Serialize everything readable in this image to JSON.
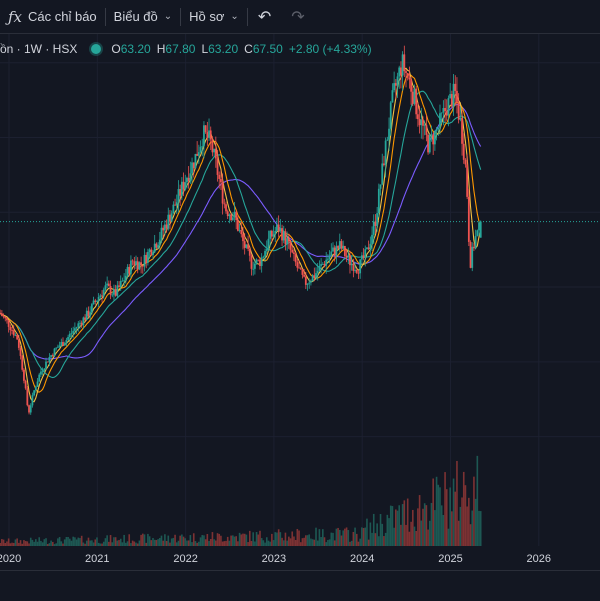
{
  "toolbar": {
    "indicators_label": "Các chỉ báo",
    "chart_label": "Biểu đồ",
    "profile_label": "Hồ sơ",
    "icons": [
      "fx-icon",
      "undo-icon",
      "redo-icon"
    ]
  },
  "legend": {
    "symbol": "ồn · 1W · HSX",
    "open_label": "O",
    "open": "63.20",
    "high_label": "H",
    "high": "67.80",
    "low_label": "L",
    "low": "63.20",
    "close_label": "C",
    "close": "67.50",
    "change": "+2.80 (+4.33%)"
  },
  "colors": {
    "up": "#26a69a",
    "down": "#ef5350",
    "background": "#131722",
    "ma_yellow": "#f5c042",
    "ma_orange": "#ff9800",
    "ma_teal": "#26a69a",
    "ma_purple": "#7b5cff"
  },
  "chart_data": {
    "type": "candlestick",
    "interval": "1W",
    "x_ticks": [
      "2020",
      "2021",
      "2022",
      "2023",
      "2024",
      "2025",
      "2026"
    ],
    "close_series": [
      [
        2019.9,
        43
      ],
      [
        2020.0,
        40
      ],
      [
        2020.1,
        36
      ],
      [
        2020.18,
        24
      ],
      [
        2020.22,
        16
      ],
      [
        2020.28,
        22
      ],
      [
        2020.35,
        27
      ],
      [
        2020.45,
        31
      ],
      [
        2020.55,
        34
      ],
      [
        2020.65,
        36
      ],
      [
        2020.75,
        39
      ],
      [
        2020.9,
        43
      ],
      [
        2021.0,
        47
      ],
      [
        2021.1,
        50
      ],
      [
        2021.2,
        48
      ],
      [
        2021.3,
        52
      ],
      [
        2021.4,
        57
      ],
      [
        2021.5,
        56
      ],
      [
        2021.6,
        60
      ],
      [
        2021.7,
        63
      ],
      [
        2021.8,
        68
      ],
      [
        2021.9,
        73
      ],
      [
        2022.0,
        79
      ],
      [
        2022.1,
        84
      ],
      [
        2022.2,
        91
      ],
      [
        2022.28,
        89
      ],
      [
        2022.35,
        82
      ],
      [
        2022.45,
        71
      ],
      [
        2022.55,
        69
      ],
      [
        2022.65,
        62
      ],
      [
        2022.75,
        56
      ],
      [
        2022.85,
        57
      ],
      [
        2022.95,
        63
      ],
      [
        2023.05,
        66
      ],
      [
        2023.15,
        62
      ],
      [
        2023.25,
        56
      ],
      [
        2023.35,
        51
      ],
      [
        2023.45,
        53
      ],
      [
        2023.55,
        56
      ],
      [
        2023.65,
        59
      ],
      [
        2023.75,
        61
      ],
      [
        2023.85,
        57
      ],
      [
        2023.95,
        55
      ],
      [
        2024.05,
        59
      ],
      [
        2024.15,
        68
      ],
      [
        2024.25,
        85
      ],
      [
        2024.35,
        101
      ],
      [
        2024.45,
        110
      ],
      [
        2024.55,
        104
      ],
      [
        2024.65,
        95
      ],
      [
        2024.75,
        88
      ],
      [
        2024.85,
        92
      ],
      [
        2024.95,
        98
      ],
      [
        2025.05,
        102
      ],
      [
        2025.12,
        93
      ],
      [
        2025.18,
        80
      ],
      [
        2025.22,
        56
      ],
      [
        2025.28,
        63
      ],
      [
        2025.36,
        67.5
      ]
    ]
  }
}
